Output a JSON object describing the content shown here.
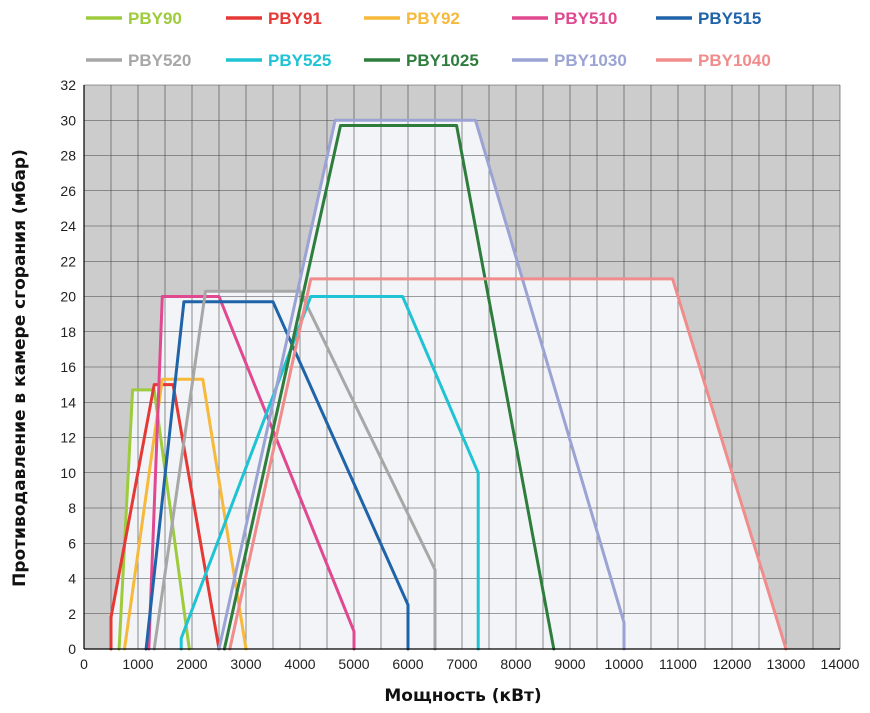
{
  "chart_data": {
    "type": "line",
    "title": "",
    "xlabel": "Мощность (кВт)",
    "ylabel": "Противодавление в камере сгорания (мбар)",
    "xlim": [
      0,
      14000
    ],
    "ylim": [
      0,
      32
    ],
    "xticks": [
      0,
      1000,
      2000,
      3000,
      4000,
      5000,
      6000,
      7000,
      8000,
      9000,
      10000,
      11000,
      12000,
      13000,
      14000
    ],
    "yticks": [
      0,
      2,
      4,
      6,
      8,
      10,
      12,
      14,
      16,
      18,
      20,
      22,
      24,
      26,
      28,
      30,
      32
    ],
    "grid": true,
    "legend_position": "top",
    "series": [
      {
        "name": "PBY90",
        "color": "#9dcb3b",
        "points": [
          [
            650,
            0
          ],
          [
            900,
            14.7
          ],
          [
            1300,
            14.7
          ],
          [
            1950,
            0
          ]
        ]
      },
      {
        "name": "PBY91",
        "color": "#e53935",
        "points": [
          [
            500,
            0
          ],
          [
            500,
            1.8
          ],
          [
            1300,
            15
          ],
          [
            1650,
            15
          ],
          [
            2500,
            0
          ]
        ]
      },
      {
        "name": "PBY92",
        "color": "#f6b93b",
        "points": [
          [
            750,
            0
          ],
          [
            1450,
            15.3
          ],
          [
            2200,
            15.3
          ],
          [
            3000,
            0
          ]
        ]
      },
      {
        "name": "PBY510",
        "color": "#e0488f",
        "points": [
          [
            1200,
            0
          ],
          [
            1450,
            20
          ],
          [
            2500,
            20
          ],
          [
            5000,
            1
          ],
          [
            5000,
            0
          ]
        ]
      },
      {
        "name": "PBY515",
        "color": "#1f63a8",
        "points": [
          [
            1150,
            0
          ],
          [
            1850,
            19.7
          ],
          [
            3500,
            19.7
          ],
          [
            6000,
            2.5
          ],
          [
            6000,
            0
          ]
        ]
      },
      {
        "name": "PBY520",
        "color": "#a7a7a7",
        "points": [
          [
            1300,
            0
          ],
          [
            2250,
            20.3
          ],
          [
            4000,
            20.3
          ],
          [
            6500,
            4.5
          ],
          [
            6500,
            0
          ]
        ]
      },
      {
        "name": "PBY525",
        "color": "#1fc3d3",
        "points": [
          [
            1800,
            0
          ],
          [
            1800,
            0.6
          ],
          [
            4200,
            20
          ],
          [
            5900,
            20
          ],
          [
            7300,
            10
          ],
          [
            7300,
            0
          ]
        ]
      },
      {
        "name": "PBY1025",
        "color": "#2e7d3d",
        "points": [
          [
            2600,
            0
          ],
          [
            4750,
            29.7
          ],
          [
            6900,
            29.7
          ],
          [
            8700,
            0
          ]
        ]
      },
      {
        "name": "PBY1030",
        "color": "#9ba3d4",
        "points": [
          [
            2500,
            0
          ],
          [
            4650,
            30
          ],
          [
            7250,
            30
          ],
          [
            10000,
            1.5
          ],
          [
            10000,
            0
          ]
        ]
      },
      {
        "name": "PBY1040",
        "color": "#f08c8c",
        "points": [
          [
            2700,
            0
          ],
          [
            4200,
            21
          ],
          [
            10900,
            21
          ],
          [
            13000,
            0
          ]
        ]
      }
    ]
  },
  "legend_rows": [
    [
      "PBY90",
      "PBY91",
      "PBY92",
      "PBY510",
      "PBY515"
    ],
    [
      "PBY520",
      "PBY525",
      "PBY1025",
      "PBY1030",
      "PBY1040"
    ]
  ],
  "colors": {
    "grid_background": "#cccccc",
    "grid_line": "#444444",
    "envelope_fill": "#f2f4f7",
    "axis": "#000000"
  }
}
